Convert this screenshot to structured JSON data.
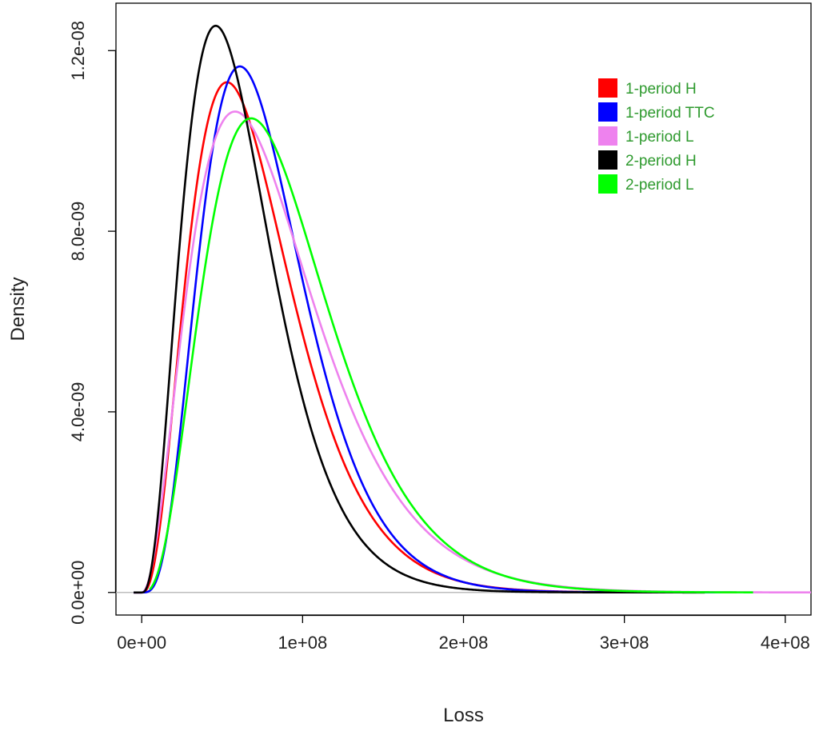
{
  "chart_data": {
    "type": "line",
    "title": "",
    "xlabel": "Loss",
    "ylabel": "Density",
    "xlim": [
      -16000000,
      416000000
    ],
    "ylim": [
      -5e-10,
      1.305e-08
    ],
    "xticks": [
      0,
      100000000,
      200000000,
      300000000,
      400000000
    ],
    "xtick_labels": [
      "0e+00",
      "1e+08",
      "2e+08",
      "3e+08",
      "4e+08"
    ],
    "yticks": [
      0,
      4e-09,
      8e-09,
      1.2e-08
    ],
    "ytick_labels": [
      "0.0e+00",
      "4.0e-09",
      "8.0e-09",
      "1.2e-08"
    ],
    "baseline": 0,
    "legend_position": "top-right",
    "series": [
      {
        "name": "1-period H",
        "color": "#ff0000",
        "x_range": [
          -5000000,
          370000000
        ],
        "mode": 53000000,
        "peak": 1.13e-08,
        "k": 3.7
      },
      {
        "name": "1-period TTC",
        "color": "#0000ff",
        "x_range": [
          -5000000,
          360000000
        ],
        "mode": 61000000,
        "peak": 1.165e-08,
        "k": 4.6
      },
      {
        "name": "1-period L",
        "color": "#ee82ee",
        "x_range": [
          -2000000,
          416000000
        ],
        "mode": 58000000,
        "peak": 1.065e-08,
        "k": 3.2
      },
      {
        "name": "2-period H",
        "color": "#000000",
        "x_range": [
          -5000000,
          350000000
        ],
        "mode": 46000000,
        "peak": 1.255e-08,
        "k": 3.7
      },
      {
        "name": "2-period L",
        "color": "#00ff00",
        "x_range": [
          5000000,
          380000000
        ],
        "mode": 68000000,
        "peak": 1.05e-08,
        "k": 4.0
      }
    ]
  }
}
